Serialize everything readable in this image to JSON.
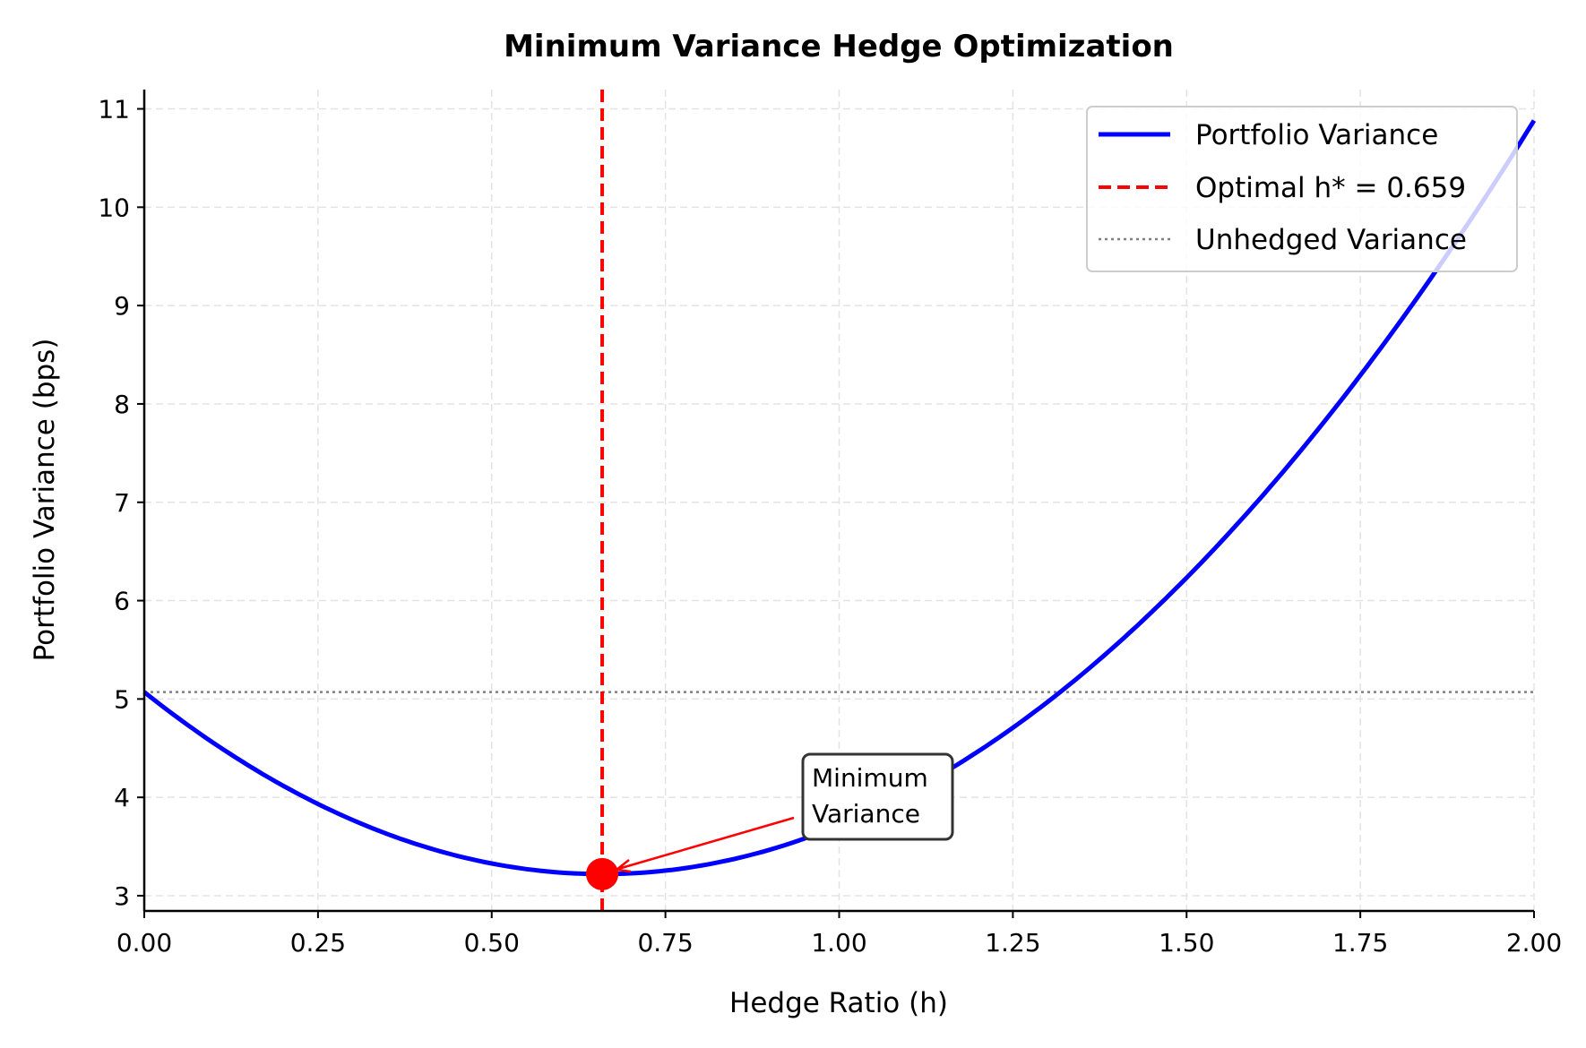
{
  "chart_data": {
    "type": "line",
    "title": "Minimum Variance Hedge Optimization",
    "xlabel": "Hedge Ratio (h)",
    "ylabel": "Portfolio Variance (bps)",
    "xlim": [
      0,
      2
    ],
    "ylim": [
      2.845,
      11.196
    ],
    "xticks": [
      "0.00",
      "0.25",
      "0.50",
      "0.75",
      "1.00",
      "1.25",
      "1.50",
      "1.75",
      "2.00"
    ],
    "yticks": [
      "3",
      "4",
      "5",
      "6",
      "7",
      "8",
      "9",
      "10",
      "11"
    ],
    "grid": true,
    "legend_position": "top-right",
    "series": [
      {
        "name": "Portfolio Variance",
        "kind": "quadratic curve",
        "color": "#0000ff",
        "x": [
          0,
          0.25,
          0.5,
          0.659,
          0.75,
          1.0,
          1.25,
          1.5,
          1.75,
          2.0
        ],
        "y": [
          5.07,
          3.93,
          3.33,
          3.22,
          3.26,
          3.72,
          4.71,
          6.23,
          8.28,
          10.85
        ]
      },
      {
        "name": "Optimal h* = 0.659",
        "kind": "vertical dashed line",
        "x": 0.659,
        "color": "#ff0000"
      },
      {
        "name": "Unhedged Variance",
        "kind": "horizontal dotted line",
        "y": 5.07,
        "color": "#808080"
      }
    ],
    "optimum": {
      "x": 0.659,
      "y": 3.22,
      "color": "#ff0000"
    },
    "annotation": {
      "text_line1": "Minimum",
      "text_line2": "Variance",
      "arrow_color": "#ff0000"
    }
  }
}
